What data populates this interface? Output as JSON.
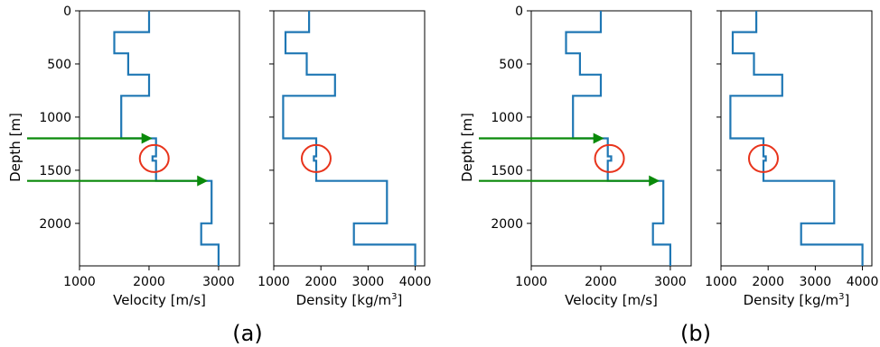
{
  "chart_data": [
    {
      "type": "line",
      "panel": "(a)",
      "xlabel": "Velocity [m/s]",
      "ylabel": "Depth [m]",
      "xlim": [
        1000,
        3300
      ],
      "ylim": [
        2400,
        0
      ],
      "xticks": [
        "1000",
        "2000",
        "3000"
      ],
      "yticks": [
        "0",
        "500",
        "1000",
        "1500",
        "2000"
      ],
      "series": [
        {
          "x": [
            2000,
            2000,
            1500,
            1500,
            1700,
            1700,
            2000,
            2000,
            1600,
            1600,
            2100,
            2100,
            2050,
            2050,
            2100,
            2100,
            2900,
            2900,
            2750,
            2750,
            3000,
            3000
          ],
          "y": [
            0,
            200,
            200,
            400,
            400,
            600,
            600,
            800,
            800,
            1200,
            1200,
            1370,
            1370,
            1410,
            1410,
            1600,
            1600,
            2000,
            2000,
            2200,
            2200,
            2400
          ]
        }
      ],
      "annotations": {
        "arrows_depth": [
          1200,
          1600
        ],
        "circle": {
          "x": 2075,
          "y": 1390
        }
      },
      "grid": false
    },
    {
      "type": "line",
      "panel": "(a)",
      "xlabel": "Density [kg/m3]",
      "ylabel": "",
      "xlim": [
        1000,
        4200
      ],
      "ylim": [
        2400,
        0
      ],
      "xticks": [
        "1000",
        "2000",
        "3000",
        "4000"
      ],
      "series": [
        {
          "x": [
            1750,
            1750,
            1250,
            1250,
            1700,
            1700,
            2300,
            2300,
            1200,
            1200,
            1900,
            1900,
            1850,
            1850,
            1900,
            1900,
            3400,
            3400,
            2700,
            2700,
            4000,
            4000
          ],
          "y": [
            0,
            200,
            200,
            400,
            400,
            600,
            600,
            800,
            800,
            1200,
            1200,
            1370,
            1370,
            1410,
            1410,
            1600,
            1600,
            2000,
            2000,
            2200,
            2200,
            2400
          ]
        }
      ],
      "annotations": {
        "circle": {
          "x": 1900,
          "y": 1390
        }
      },
      "grid": false
    },
    {
      "type": "line",
      "panel": "(b)",
      "xlabel": "Velocity [m/s]",
      "ylabel": "Depth [m]",
      "xlim": [
        1000,
        3300
      ],
      "ylim": [
        2400,
        0
      ],
      "xticks": [
        "1000",
        "2000",
        "3000"
      ],
      "yticks": [
        "0",
        "500",
        "1000",
        "1500",
        "2000"
      ],
      "series": [
        {
          "x": [
            2000,
            2000,
            1500,
            1500,
            1700,
            1700,
            2000,
            2000,
            1600,
            1600,
            2100,
            2100,
            2150,
            2150,
            2100,
            2100,
            2900,
            2900,
            2750,
            2750,
            3000,
            3000
          ],
          "y": [
            0,
            200,
            200,
            400,
            400,
            600,
            600,
            800,
            800,
            1200,
            1200,
            1370,
            1370,
            1410,
            1410,
            1600,
            1600,
            2000,
            2000,
            2200,
            2200,
            2400
          ]
        }
      ],
      "annotations": {
        "arrows_depth": [
          1200,
          1600
        ],
        "circle": {
          "x": 2125,
          "y": 1390
        }
      },
      "grid": false
    },
    {
      "type": "line",
      "panel": "(b)",
      "xlabel": "Density [kg/m3]",
      "ylabel": "",
      "xlim": [
        1000,
        4200
      ],
      "ylim": [
        2400,
        0
      ],
      "xticks": [
        "1000",
        "2000",
        "3000",
        "4000"
      ],
      "series": [
        {
          "x": [
            1750,
            1750,
            1250,
            1250,
            1700,
            1700,
            2300,
            2300,
            1200,
            1200,
            1900,
            1900,
            1950,
            1950,
            1900,
            1900,
            3400,
            3400,
            2700,
            2700,
            4000,
            4000
          ],
          "y": [
            0,
            200,
            200,
            400,
            400,
            600,
            600,
            800,
            800,
            1200,
            1200,
            1370,
            1370,
            1410,
            1410,
            1600,
            1600,
            2000,
            2000,
            2200,
            2200,
            2400
          ]
        }
      ],
      "annotations": {
        "circle": {
          "x": 1900,
          "y": 1390
        }
      },
      "grid": false
    }
  ],
  "panel_labels": [
    "(a)",
    "(b)"
  ],
  "colors": {
    "line": "#1f77b4",
    "arrow": "#0a8a0a",
    "circle": "#e8341c"
  }
}
